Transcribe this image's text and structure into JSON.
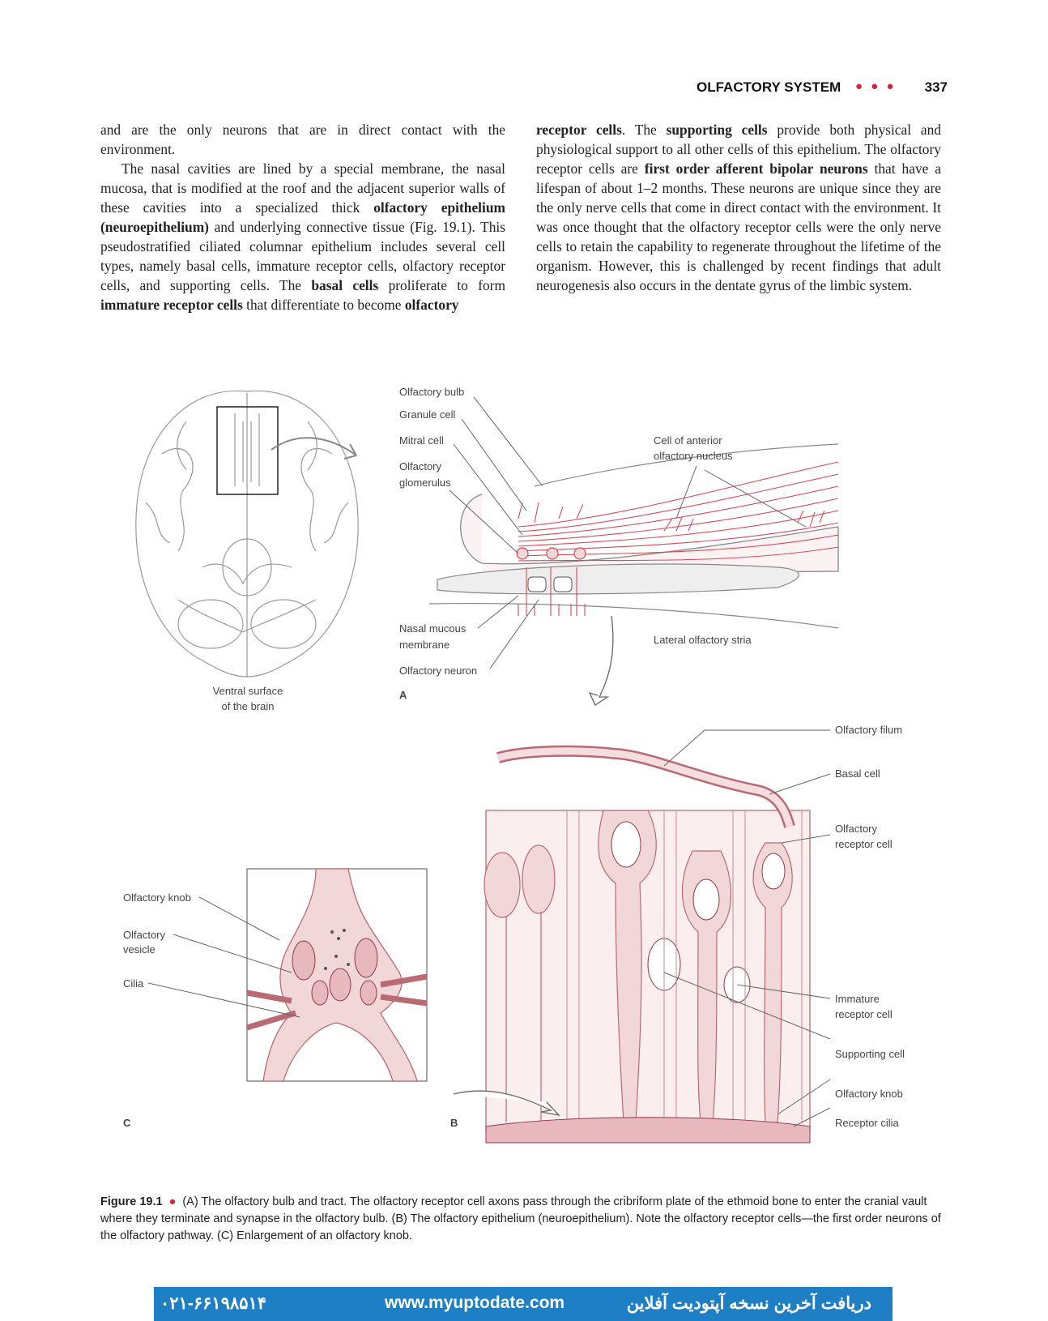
{
  "header": {
    "section_title": "OLFACTORY SYSTEM",
    "dots": "● ● ●",
    "page_number": "337"
  },
  "left_column": {
    "p1": "and are the only neurons that are in direct contact with the environment.",
    "p2_a": "The nasal cavities are lined by a special membrane, the nasal mucosa, that is modified at the roof and the adjacent superior walls of these cavities into a specialized thick ",
    "p2_b": "olfactory epithelium (neuroepithelium)",
    "p2_c": " and underlying connective tissue (Fig. 19.1). This pseudostratified ciliated columnar epithelium includes several cell types, namely basal cells, immature receptor cells, olfactory receptor cells, and supporting cells. The ",
    "p2_d": "basal cells",
    "p2_e": " proliferate to form ",
    "p2_f": "immature receptor cells",
    "p2_g": " that differentiate to become ",
    "p2_h": "olfactory"
  },
  "right_column": {
    "p1_a": "receptor cells",
    "p1_b": ". The ",
    "p1_c": "supporting cells",
    "p1_d": " provide both physical and physiological support to all other cells of this epithelium. The olfactory receptor cells are ",
    "p1_e": "first order afferent bipolar neurons",
    "p1_f": " that have a lifespan of about 1–2 months. These neurons are unique since they are the only nerve cells that come in direct contact with the environment. It was once thought that the olfactory receptor cells were the only nerve cells to retain the capability to regenerate throughout the lifetime of the organism. However, this is challenged by recent findings that adult neurogenesis also occurs in the dentate gyrus of the limbic system."
  },
  "figure": {
    "brain_label_1": "Ventral surface",
    "brain_label_2": "of the brain",
    "panel_a": {
      "olfactory_bulb": "Olfactory bulb",
      "granule_cell": "Granule cell",
      "mitral_cell": "Mitral cell",
      "olfactory_glomerulus_1": "Olfactory",
      "olfactory_glomerulus_2": "glomerulus",
      "anterior_nucleus_1": "Cell of anterior",
      "anterior_nucleus_2": "olfactory nucleus",
      "nasal_mucous_1": "Nasal mucous",
      "nasal_mucous_2": "membrane",
      "olfactory_neuron": "Olfactory neuron",
      "lateral_stria": "Lateral olfactory stria",
      "letter": "A"
    },
    "panel_b": {
      "olfactory_filum": "Olfactory filum",
      "basal_cell": "Basal cell",
      "receptor_cell_1": "Olfactory",
      "receptor_cell_2": "receptor cell",
      "immature_1": "Immature",
      "immature_2": "receptor cell",
      "supporting_cell": "Supporting cell",
      "olfactory_knob": "Olfactory knob",
      "receptor_cilia": "Receptor cilia",
      "letter": "B"
    },
    "panel_c": {
      "olfactory_knob": "Olfactory knob",
      "vesicle_1": "Olfactory",
      "vesicle_2": "vesicle",
      "cilia": "Cilia",
      "letter": "C"
    }
  },
  "caption": {
    "label": "Figure 19.1",
    "bullet": "●",
    "text": "(A) The olfactory bulb and tract. The olfactory receptor cell axons pass through the cribriform plate of the ethmoid bone to enter the cranial vault where they terminate and synapse in the olfactory bulb. (B) The olfactory epithelium (neuroepithelium). Note the olfactory receptor cells—the first order neurons of the olfactory pathway. (C) Enlargement of an olfactory knob."
  },
  "banner": {
    "phone": "۰۲۱-۶۶۱۹۸۵۱۴",
    "url": "www.myuptodate.com",
    "persian": "دریافت آخرین نسخه آپتودیت آفلاین"
  },
  "colors": {
    "accent": "#d5243a",
    "banner": "#1f7fc5",
    "tissue": "#f2d7d9",
    "nerve": "#d84b5a"
  }
}
